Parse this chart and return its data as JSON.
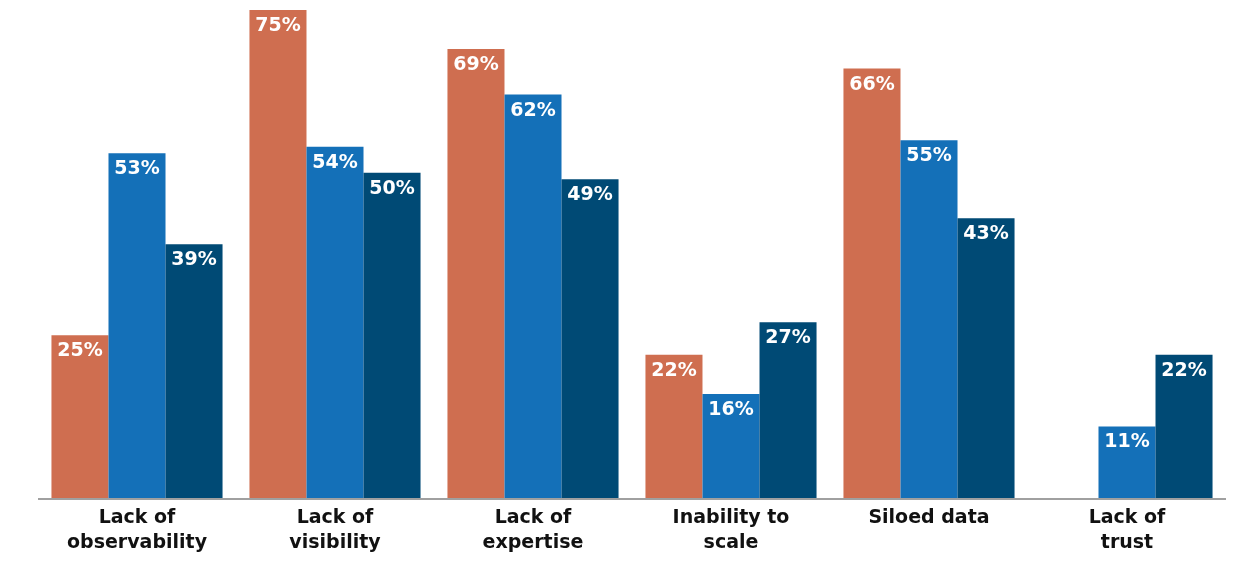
{
  "chart_data": {
    "type": "bar",
    "categories": [
      "Lack of observability",
      "Lack of visibility",
      "Lack of expertise",
      "Inability to scale",
      "Siloed data",
      "Lack of trust"
    ],
    "series": [
      {
        "color": "#cf6e50",
        "values": [
          25,
          75,
          69,
          22,
          66,
          null
        ],
        "value_labels": [
          "25%",
          "75%",
          "69%",
          "22%",
          "66%",
          null
        ]
      },
      {
        "color": "#1470b8",
        "values": [
          53,
          54,
          62,
          16,
          55,
          11
        ],
        "value_labels": [
          "53%",
          "54%",
          "62%",
          "16%",
          "55%",
          "11%"
        ]
      },
      {
        "color": "#004a75",
        "values": [
          39,
          50,
          49,
          27,
          43,
          22
        ],
        "value_labels": [
          "39%",
          "50%",
          "49%",
          "27%",
          "43%",
          "22%"
        ]
      }
    ],
    "ylim": [
      0,
      75
    ],
    "tick_labels": "x"
  }
}
